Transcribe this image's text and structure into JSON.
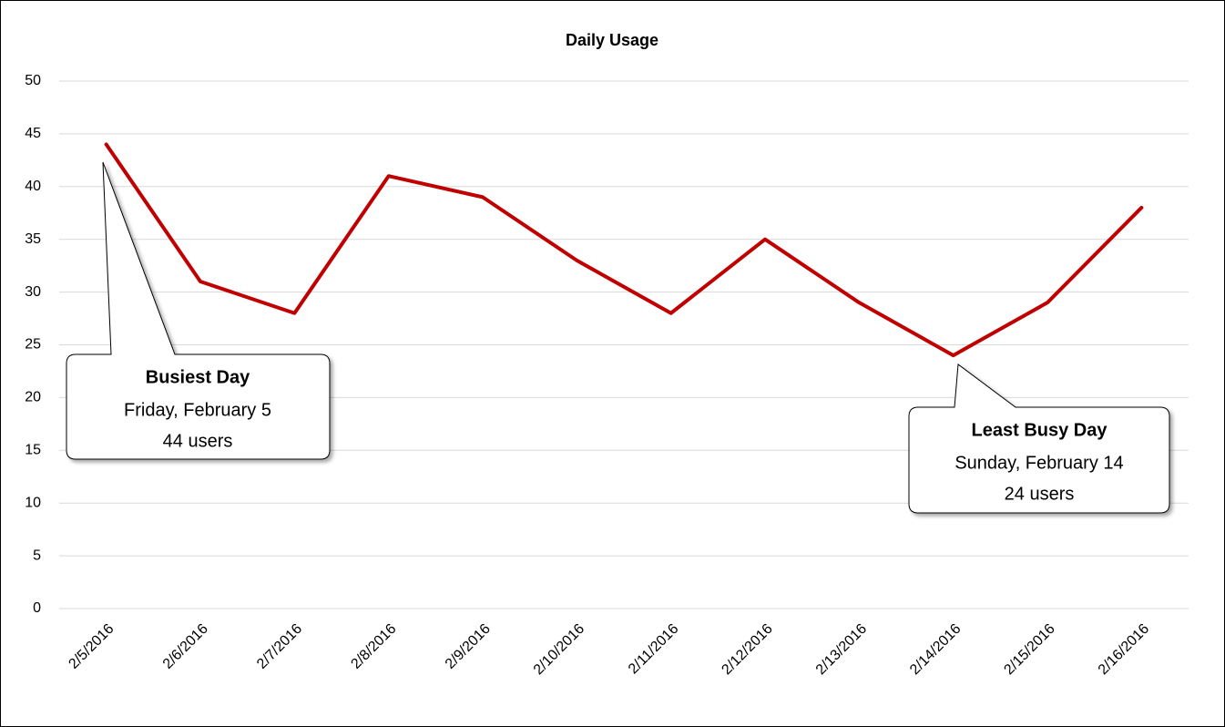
{
  "chart_data": {
    "type": "line",
    "title": "Daily Usage",
    "categories": [
      "2/5/2016",
      "2/6/2016",
      "2/7/2016",
      "2/8/2016",
      "2/9/2016",
      "2/10/2016",
      "2/11/2016",
      "2/12/2016",
      "2/13/2016",
      "2/14/2016",
      "2/15/2016",
      "2/16/2016"
    ],
    "values": [
      44,
      31,
      28,
      41,
      39,
      33,
      28,
      35,
      29,
      24,
      29,
      38
    ],
    "color": "#c00000",
    "ylim": [
      0,
      50
    ],
    "yticks": [
      0,
      5,
      10,
      15,
      20,
      25,
      30,
      35,
      40,
      45,
      50
    ],
    "grid": true,
    "annotations": [
      {
        "title": "Busiest Day",
        "lines": [
          "Friday, February 5",
          "44 users"
        ]
      },
      {
        "title": "Least Busy Day",
        "lines": [
          "Sunday, February 14",
          "24 users"
        ]
      }
    ]
  }
}
